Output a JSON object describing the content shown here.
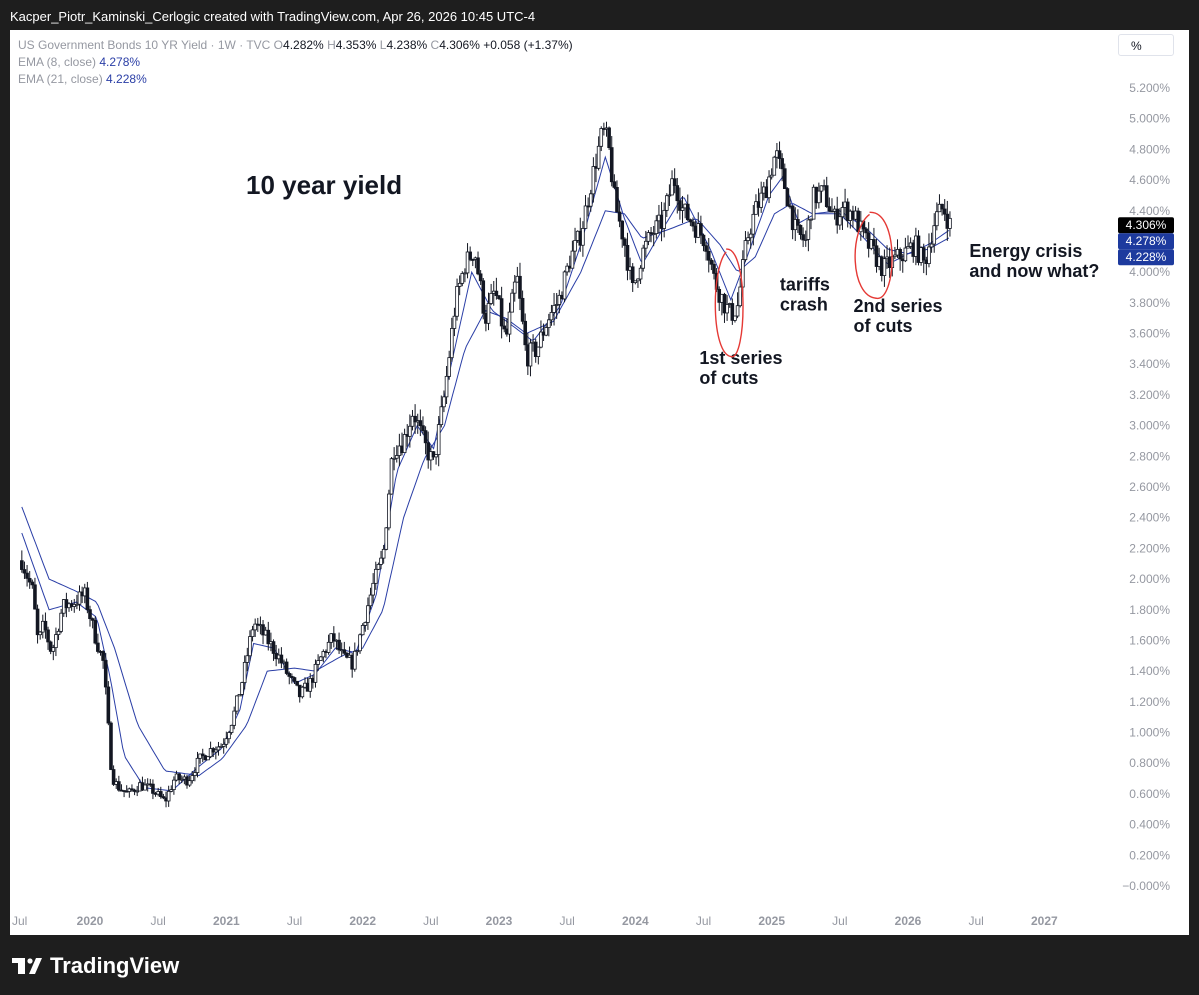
{
  "header": {
    "attribution": "Kacper_Piotr_Kaminski_Cerlogic created with TradingView.com, Apr 26, 2026 10:45 UTC-4"
  },
  "legend": {
    "symbol": "US Government Bonds 10 YR Yield · 1W · TVC",
    "o_label": "O",
    "o_value": "4.282%",
    "h_label": "H",
    "h_value": "4.353%",
    "l_label": "L",
    "l_value": "4.238%",
    "c_label": "C",
    "c_value": "4.306%",
    "change": "+0.058 (+1.37%)",
    "ema8_label": "EMA (8, close)",
    "ema8_value": "4.278%",
    "ema21_label": "EMA (21, close)",
    "ema21_value": "4.228%"
  },
  "scale_button": "%",
  "footer": {
    "brand": "TradingView"
  },
  "colors": {
    "candle": "#131722",
    "ema": "#2a3ea6",
    "annotation_circle": "#e53935",
    "price_tag": "#000000",
    "ema_tag": "#1d3a9e"
  },
  "chart_data": {
    "type": "candlestick",
    "title": "10 year yield",
    "y_unit": "%",
    "ylim": [
      -0.1,
      5.3
    ],
    "y_ticks": [
      "5.200%",
      "5.000%",
      "4.800%",
      "4.600%",
      "4.400%",
      "4.200%",
      "4.000%",
      "3.800%",
      "3.600%",
      "3.400%",
      "3.200%",
      "3.000%",
      "2.800%",
      "2.600%",
      "2.400%",
      "2.200%",
      "2.000%",
      "1.800%",
      "1.600%",
      "1.400%",
      "1.200%",
      "1.000%",
      "0.800%",
      "0.600%",
      "0.400%",
      "0.200%",
      "−0.000%"
    ],
    "x_ticks": [
      {
        "label": "Jul",
        "t": 2019.5,
        "bold": false
      },
      {
        "label": "2020",
        "t": 2020.0,
        "bold": true
      },
      {
        "label": "Jul",
        "t": 2020.5,
        "bold": false
      },
      {
        "label": "2021",
        "t": 2021.0,
        "bold": true
      },
      {
        "label": "Jul",
        "t": 2021.5,
        "bold": false
      },
      {
        "label": "2022",
        "t": 2022.0,
        "bold": true
      },
      {
        "label": "Jul",
        "t": 2022.5,
        "bold": false
      },
      {
        "label": "2023",
        "t": 2023.0,
        "bold": true
      },
      {
        "label": "Jul",
        "t": 2023.5,
        "bold": false
      },
      {
        "label": "2024",
        "t": 2024.0,
        "bold": true
      },
      {
        "label": "Jul",
        "t": 2024.5,
        "bold": false
      },
      {
        "label": "2025",
        "t": 2025.0,
        "bold": true
      },
      {
        "label": "Jul",
        "t": 2025.5,
        "bold": false
      },
      {
        "label": "2026",
        "t": 2026.0,
        "bold": true
      },
      {
        "label": "Jul",
        "t": 2026.5,
        "bold": false
      },
      {
        "label": "2027",
        "t": 2027.0,
        "bold": true
      }
    ],
    "xlim": [
      2019.5,
      2027.1
    ],
    "close_path": [
      [
        2019.5,
        2.12
      ],
      [
        2019.58,
        1.92
      ],
      [
        2019.62,
        1.58
      ],
      [
        2019.66,
        1.7
      ],
      [
        2019.72,
        1.52
      ],
      [
        2019.8,
        1.82
      ],
      [
        2019.88,
        1.85
      ],
      [
        2019.96,
        1.9
      ],
      [
        2020.04,
        1.62
      ],
      [
        2020.1,
        1.45
      ],
      [
        2020.16,
        0.72
      ],
      [
        2020.2,
        0.65
      ],
      [
        2020.28,
        0.6
      ],
      [
        2020.36,
        0.66
      ],
      [
        2020.45,
        0.63
      ],
      [
        2020.55,
        0.55
      ],
      [
        2020.62,
        0.7
      ],
      [
        2020.72,
        0.69
      ],
      [
        2020.8,
        0.82
      ],
      [
        2020.9,
        0.9
      ],
      [
        2020.97,
        0.92
      ],
      [
        2021.05,
        1.1
      ],
      [
        2021.12,
        1.35
      ],
      [
        2021.2,
        1.72
      ],
      [
        2021.28,
        1.63
      ],
      [
        2021.38,
        1.5
      ],
      [
        2021.46,
        1.36
      ],
      [
        2021.54,
        1.24
      ],
      [
        2021.62,
        1.33
      ],
      [
        2021.7,
        1.5
      ],
      [
        2021.78,
        1.62
      ],
      [
        2021.86,
        1.48
      ],
      [
        2021.93,
        1.45
      ],
      [
        2022.0,
        1.7
      ],
      [
        2022.08,
        1.97
      ],
      [
        2022.15,
        2.15
      ],
      [
        2022.22,
        2.85
      ],
      [
        2022.3,
        2.9
      ],
      [
        2022.37,
        3.1
      ],
      [
        2022.45,
        2.88
      ],
      [
        2022.52,
        2.75
      ],
      [
        2022.6,
        3.2
      ],
      [
        2022.68,
        3.8
      ],
      [
        2022.75,
        4.05
      ],
      [
        2022.82,
        4.15
      ],
      [
        2022.9,
        3.7
      ],
      [
        2022.97,
        3.88
      ],
      [
        2023.05,
        3.55
      ],
      [
        2023.13,
        3.98
      ],
      [
        2023.2,
        3.45
      ],
      [
        2023.28,
        3.5
      ],
      [
        2023.36,
        3.7
      ],
      [
        2023.44,
        3.82
      ],
      [
        2023.52,
        4.08
      ],
      [
        2023.6,
        4.25
      ],
      [
        2023.68,
        4.6
      ],
      [
        2023.76,
        4.92
      ],
      [
        2023.8,
        4.85
      ],
      [
        2023.85,
        4.45
      ],
      [
        2023.92,
        4.2
      ],
      [
        2023.98,
        3.88
      ],
      [
        2024.05,
        4.12
      ],
      [
        2024.12,
        4.25
      ],
      [
        2024.2,
        4.33
      ],
      [
        2024.28,
        4.62
      ],
      [
        2024.35,
        4.4
      ],
      [
        2024.44,
        4.3
      ],
      [
        2024.52,
        4.2
      ],
      [
        2024.58,
        3.95
      ],
      [
        2024.65,
        3.8
      ],
      [
        2024.7,
        3.72
      ],
      [
        2024.75,
        3.78
      ],
      [
        2024.82,
        4.22
      ],
      [
        2024.88,
        4.4
      ],
      [
        2024.96,
        4.55
      ],
      [
        2025.03,
        4.78
      ],
      [
        2025.1,
        4.55
      ],
      [
        2025.18,
        4.25
      ],
      [
        2025.25,
        4.2
      ],
      [
        2025.3,
        4.48
      ],
      [
        2025.38,
        4.52
      ],
      [
        2025.46,
        4.35
      ],
      [
        2025.52,
        4.42
      ],
      [
        2025.6,
        4.38
      ],
      [
        2025.68,
        4.22
      ],
      [
        2025.75,
        4.12
      ],
      [
        2025.82,
        4.02
      ],
      [
        2025.9,
        4.08
      ],
      [
        2025.97,
        4.12
      ],
      [
        2026.05,
        4.18
      ],
      [
        2026.12,
        4.05
      ],
      [
        2026.2,
        4.35
      ],
      [
        2026.26,
        4.42
      ],
      [
        2026.31,
        4.306
      ]
    ],
    "ema8_path": [
      [
        2019.5,
        2.3
      ],
      [
        2019.7,
        1.8
      ],
      [
        2019.9,
        1.85
      ],
      [
        2020.05,
        1.75
      ],
      [
        2020.15,
        1.35
      ],
      [
        2020.25,
        0.85
      ],
      [
        2020.4,
        0.64
      ],
      [
        2020.6,
        0.62
      ],
      [
        2020.8,
        0.78
      ],
      [
        2020.97,
        0.9
      ],
      [
        2021.1,
        1.15
      ],
      [
        2021.2,
        1.58
      ],
      [
        2021.35,
        1.55
      ],
      [
        2021.5,
        1.32
      ],
      [
        2021.65,
        1.38
      ],
      [
        2021.8,
        1.55
      ],
      [
        2021.95,
        1.52
      ],
      [
        2022.1,
        1.9
      ],
      [
        2022.25,
        2.7
      ],
      [
        2022.4,
        3.0
      ],
      [
        2022.52,
        2.85
      ],
      [
        2022.65,
        3.4
      ],
      [
        2022.8,
        4.0
      ],
      [
        2022.95,
        3.75
      ],
      [
        2023.1,
        3.65
      ],
      [
        2023.25,
        3.55
      ],
      [
        2023.45,
        3.78
      ],
      [
        2023.6,
        4.18
      ],
      [
        2023.78,
        4.75
      ],
      [
        2023.92,
        4.35
      ],
      [
        2024.05,
        4.05
      ],
      [
        2024.2,
        4.28
      ],
      [
        2024.35,
        4.5
      ],
      [
        2024.55,
        4.15
      ],
      [
        2024.7,
        3.82
      ],
      [
        2024.82,
        4.1
      ],
      [
        2024.98,
        4.5
      ],
      [
        2025.08,
        4.62
      ],
      [
        2025.2,
        4.32
      ],
      [
        2025.32,
        4.38
      ],
      [
        2025.5,
        4.38
      ],
      [
        2025.7,
        4.2
      ],
      [
        2025.85,
        4.05
      ],
      [
        2026.0,
        4.12
      ],
      [
        2026.15,
        4.18
      ],
      [
        2026.31,
        4.278
      ]
    ],
    "ema21_path": [
      [
        2019.5,
        2.47
      ],
      [
        2019.7,
        2.0
      ],
      [
        2019.9,
        1.92
      ],
      [
        2020.05,
        1.85
      ],
      [
        2020.18,
        1.55
      ],
      [
        2020.35,
        1.05
      ],
      [
        2020.55,
        0.75
      ],
      [
        2020.8,
        0.72
      ],
      [
        2020.97,
        0.83
      ],
      [
        2021.15,
        1.05
      ],
      [
        2021.3,
        1.4
      ],
      [
        2021.5,
        1.42
      ],
      [
        2021.65,
        1.4
      ],
      [
        2021.85,
        1.5
      ],
      [
        2022.0,
        1.55
      ],
      [
        2022.15,
        1.8
      ],
      [
        2022.3,
        2.4
      ],
      [
        2022.45,
        2.78
      ],
      [
        2022.6,
        3.0
      ],
      [
        2022.75,
        3.5
      ],
      [
        2022.9,
        3.75
      ],
      [
        2023.05,
        3.7
      ],
      [
        2023.2,
        3.6
      ],
      [
        2023.4,
        3.68
      ],
      [
        2023.6,
        4.0
      ],
      [
        2023.78,
        4.4
      ],
      [
        2023.92,
        4.38
      ],
      [
        2024.05,
        4.22
      ],
      [
        2024.25,
        4.28
      ],
      [
        2024.45,
        4.35
      ],
      [
        2024.62,
        4.18
      ],
      [
        2024.75,
        4.0
      ],
      [
        2024.88,
        4.1
      ],
      [
        2025.02,
        4.38
      ],
      [
        2025.15,
        4.45
      ],
      [
        2025.3,
        4.38
      ],
      [
        2025.5,
        4.4
      ],
      [
        2025.7,
        4.28
      ],
      [
        2025.85,
        4.15
      ],
      [
        2026.0,
        4.12
      ],
      [
        2026.15,
        4.15
      ],
      [
        2026.31,
        4.228
      ]
    ],
    "price_tags": [
      {
        "value": 4.306,
        "text": "4.306%",
        "kind": "price"
      },
      {
        "value": 4.278,
        "text": "4.278%",
        "kind": "ema"
      },
      {
        "value": 4.228,
        "text": "4.228%",
        "kind": "ema"
      }
    ],
    "annotations": [
      {
        "lines": [
          "1st series",
          "of cuts"
        ],
        "t": 2024.47,
        "y": 3.4
      },
      {
        "lines": [
          "tariffs",
          "crash"
        ],
        "t": 2025.06,
        "y": 3.88
      },
      {
        "lines": [
          "2nd series",
          "of cuts"
        ],
        "t": 2025.6,
        "y": 3.74
      },
      {
        "lines": [
          "Energy crisis",
          "and now what?"
        ],
        "t": 2026.45,
        "y": 4.1
      }
    ],
    "circles": [
      {
        "t": 2024.69,
        "y": 3.8,
        "rt": 0.12,
        "ry": 0.35
      },
      {
        "t": 2025.75,
        "y": 4.11,
        "rt": 0.16,
        "ry": 0.28
      }
    ]
  }
}
